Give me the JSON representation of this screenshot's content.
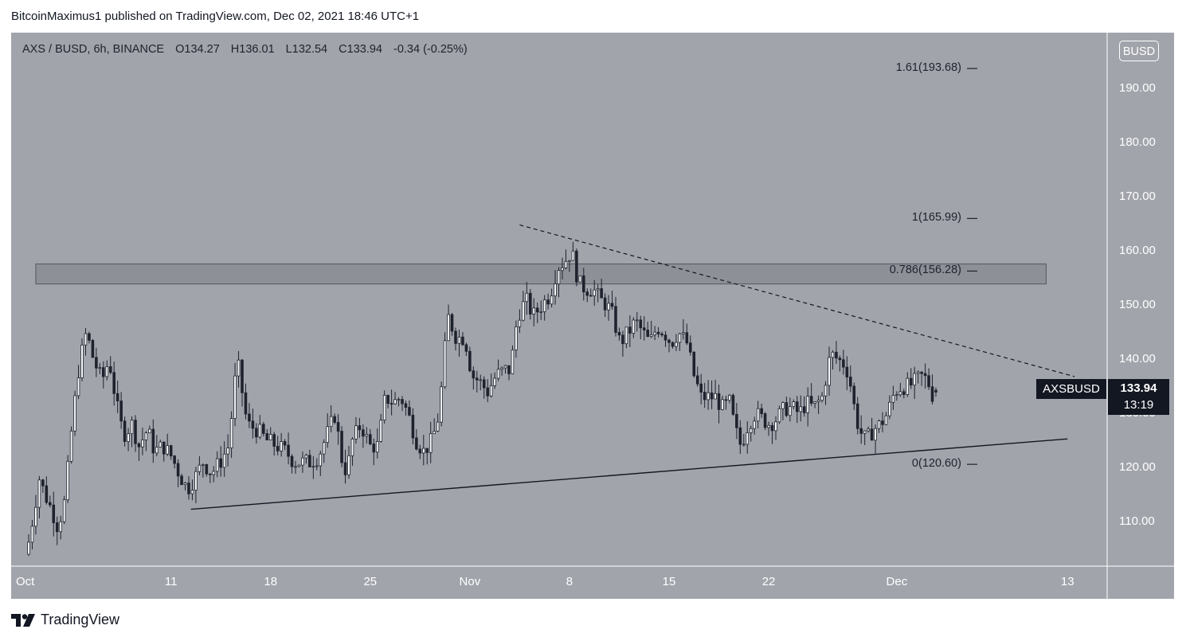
{
  "header": {
    "publisher_text": "BitcoinMaximus1 published on TradingView.com, Dec 02, 2021 18:46 UTC+1"
  },
  "symbol": {
    "title": "AXS / BUSD, 6h, BINANCE",
    "open_label": "O",
    "open": "134.27",
    "high_label": "H",
    "high": "136.01",
    "low_label": "L",
    "low": "132.54",
    "close_label": "C",
    "close": "133.94",
    "change": "-0.34 (-0.25%)"
  },
  "currency_badge": "BUSD",
  "price_tag": {
    "ticker": "AXSBUSD",
    "price": "133.94",
    "countdown": "13:19"
  },
  "colors": {
    "background": "#a1a4ab",
    "candle_up": "#ffffff",
    "candle_down": "#1e222d",
    "text": "#1e222d",
    "zone": "#7d8087"
  },
  "fib_levels": [
    {
      "label": "1.61(193.68)",
      "value": 193.68
    },
    {
      "label": "1(165.99)",
      "value": 165.99
    },
    {
      "label": "0.786(156.28)",
      "value": 156.28
    },
    {
      "label": "0(120.60)",
      "value": 120.6
    }
  ],
  "footer": {
    "brand": "TradingView",
    "logo_icon": "tradingview-logo-icon"
  },
  "chart_data": {
    "type": "candlestick",
    "title": "AXS / BUSD, 6h, BINANCE",
    "y_axis": {
      "ticks": [
        "110.00",
        "120.00",
        "130.00",
        "140.00",
        "150.00",
        "160.00",
        "170.00",
        "180.00",
        "190.00"
      ],
      "range": [
        101.8,
        200.3
      ]
    },
    "x_axis": {
      "ticks": [
        "Oct",
        "11",
        "18",
        "25",
        "Nov",
        "8",
        "15",
        "22",
        "Dec",
        "13"
      ],
      "range_days": [
        0,
        75
      ]
    },
    "resistance_zone": {
      "low": 153.9,
      "high": 157.6,
      "from_day": 0.5,
      "to_day": 71.5
    },
    "support_line": {
      "from": {
        "day": 11.4,
        "price": 112.3
      },
      "to": {
        "day": 73.0,
        "price": 125.3
      }
    },
    "descending_resistance": {
      "from": {
        "day": 34.5,
        "price": 164.8
      },
      "to": {
        "day": 73.5,
        "price": 136.8
      },
      "style": "dashed"
    },
    "last_price": 133.94,
    "anchors": [
      [
        0.1,
        104
      ],
      [
        0.5,
        110
      ],
      [
        1.0,
        118
      ],
      [
        1.4,
        115
      ],
      [
        1.9,
        112
      ],
      [
        2.3,
        109
      ],
      [
        2.8,
        114
      ],
      [
        3.3,
        128
      ],
      [
        3.8,
        139
      ],
      [
        4.3,
        145
      ],
      [
        4.8,
        140
      ],
      [
        5.4,
        136
      ],
      [
        5.9,
        140
      ],
      [
        6.4,
        132
      ],
      [
        6.9,
        126
      ],
      [
        7.5,
        128
      ],
      [
        8.0,
        124
      ],
      [
        8.6,
        127
      ],
      [
        9.1,
        123
      ],
      [
        9.7,
        124
      ],
      [
        10.3,
        122
      ],
      [
        10.8,
        119
      ],
      [
        11.4,
        116
      ],
      [
        11.9,
        118
      ],
      [
        12.5,
        121
      ],
      [
        13.1,
        119
      ],
      [
        13.7,
        121
      ],
      [
        14.3,
        124
      ],
      [
        14.9,
        140
      ],
      [
        15.6,
        128
      ],
      [
        16.3,
        127
      ],
      [
        17.0,
        125
      ],
      [
        17.7,
        124
      ],
      [
        18.3,
        123
      ],
      [
        18.9,
        121
      ],
      [
        19.4,
        121
      ],
      [
        20.0,
        121
      ],
      [
        20.6,
        122
      ],
      [
        21.2,
        126
      ],
      [
        21.8,
        130
      ],
      [
        22.2,
        122
      ],
      [
        22.6,
        119
      ],
      [
        23.0,
        125
      ],
      [
        23.6,
        128
      ],
      [
        24.2,
        124
      ],
      [
        24.8,
        124
      ],
      [
        25.3,
        133
      ],
      [
        25.9,
        132
      ],
      [
        26.4,
        133
      ],
      [
        26.9,
        130
      ],
      [
        27.5,
        125
      ],
      [
        28.0,
        123
      ],
      [
        28.6,
        125
      ],
      [
        29.1,
        130
      ],
      [
        29.7,
        148
      ],
      [
        30.3,
        144
      ],
      [
        30.9,
        144
      ],
      [
        31.4,
        137
      ],
      [
        31.9,
        136
      ],
      [
        32.5,
        134
      ],
      [
        33.1,
        137
      ],
      [
        33.7,
        138
      ],
      [
        34.1,
        138
      ],
      [
        34.6,
        148
      ],
      [
        35.2,
        151
      ],
      [
        35.7,
        148
      ],
      [
        36.3,
        150
      ],
      [
        36.9,
        152
      ],
      [
        37.4,
        157
      ],
      [
        37.9,
        158
      ],
      [
        38.4,
        160
      ],
      [
        38.9,
        154
      ],
      [
        39.4,
        153
      ],
      [
        39.9,
        153
      ],
      [
        40.4,
        151
      ],
      [
        40.9,
        150
      ],
      [
        41.3,
        148
      ],
      [
        41.8,
        143
      ],
      [
        42.4,
        145
      ],
      [
        42.9,
        147
      ],
      [
        43.4,
        145
      ],
      [
        43.9,
        143
      ],
      [
        44.4,
        146
      ],
      [
        44.9,
        145
      ],
      [
        45.4,
        143
      ],
      [
        45.9,
        145
      ],
      [
        46.5,
        143
      ],
      [
        47.0,
        137
      ],
      [
        47.5,
        133
      ],
      [
        48.0,
        133
      ],
      [
        48.5,
        133
      ],
      [
        49.0,
        131
      ],
      [
        49.5,
        132
      ],
      [
        49.9,
        127
      ],
      [
        50.3,
        124
      ],
      [
        50.8,
        128
      ],
      [
        51.3,
        130
      ],
      [
        51.8,
        129
      ],
      [
        52.3,
        128
      ],
      [
        52.8,
        129
      ],
      [
        53.4,
        131
      ],
      [
        53.9,
        131
      ],
      [
        54.4,
        130
      ],
      [
        54.9,
        132
      ],
      [
        55.4,
        131
      ],
      [
        56.0,
        133
      ],
      [
        56.6,
        141
      ],
      [
        57.1,
        140
      ],
      [
        57.6,
        139
      ],
      [
        57.9,
        137
      ],
      [
        58.2,
        132
      ],
      [
        58.6,
        127
      ],
      [
        59.1,
        125
      ],
      [
        59.6,
        127
      ],
      [
        60.1,
        128
      ],
      [
        60.6,
        130
      ],
      [
        61.1,
        134
      ],
      [
        61.6,
        135
      ],
      [
        62.1,
        135
      ],
      [
        62.6,
        136
      ],
      [
        63.1,
        137
      ],
      [
        63.6,
        135
      ],
      [
        63.8,
        133
      ]
    ]
  }
}
